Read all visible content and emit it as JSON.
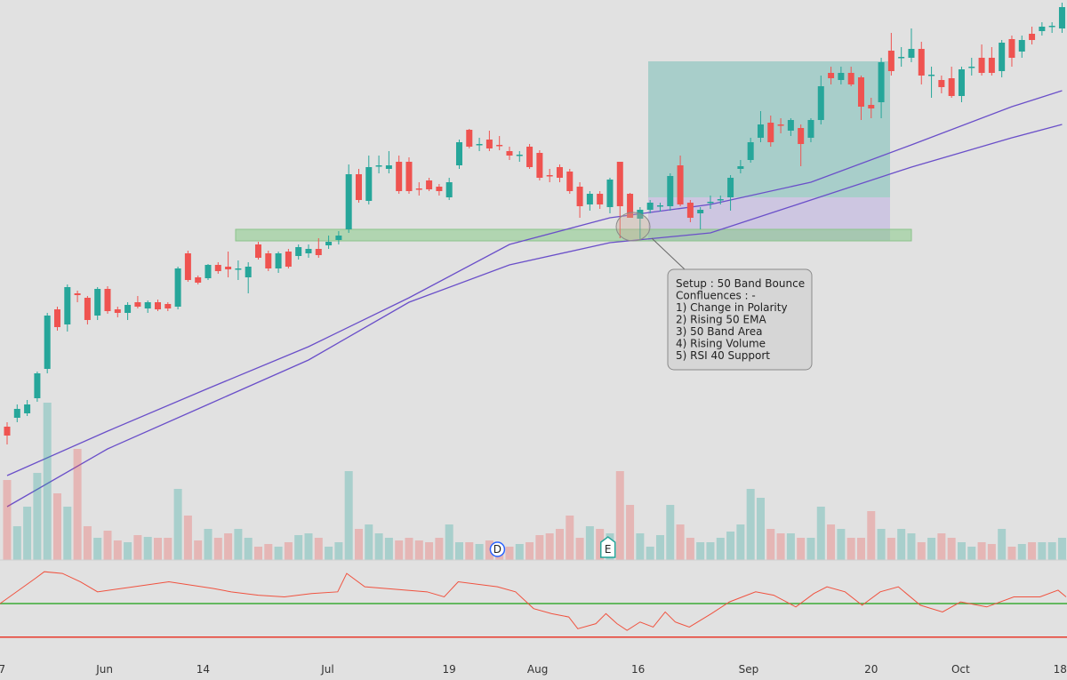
{
  "chart_data": {
    "type": "candlestick",
    "xlim": [
      -0.708,
      105.49
    ],
    "ylim": [
      135,
      765
    ],
    "xticks": [
      {
        "value": -0.5,
        "label": "7"
      },
      {
        "value": 9.7,
        "label": "Jun"
      },
      {
        "value": 19.5,
        "label": "14"
      },
      {
        "value": 31.9,
        "label": "Jul"
      },
      {
        "value": 44,
        "label": "19"
      },
      {
        "value": 52.8,
        "label": "Aug"
      },
      {
        "value": 62.8,
        "label": "16"
      },
      {
        "value": 73.8,
        "label": "Sep"
      },
      {
        "value": 86,
        "label": "20"
      },
      {
        "value": 94.9,
        "label": "Oct"
      },
      {
        "value": 104.8,
        "label": "18"
      }
    ],
    "up_color": "#26a69a",
    "down_color": "#ef5350",
    "candles": [
      [
        285,
        290,
        265,
        275
      ],
      [
        295,
        310,
        290,
        305
      ],
      [
        300,
        315,
        297,
        310
      ],
      [
        317,
        347,
        313,
        345
      ],
      [
        350,
        413,
        345,
        410
      ],
      [
        417,
        420,
        393,
        397
      ],
      [
        400,
        445,
        392,
        442
      ],
      [
        435,
        438,
        425,
        433
      ],
      [
        430,
        432,
        400,
        405
      ],
      [
        410,
        442,
        405,
        440
      ],
      [
        440,
        443,
        412,
        415
      ],
      [
        417,
        420,
        408,
        413
      ],
      [
        413,
        425,
        405,
        422
      ],
      [
        425,
        432,
        418,
        420
      ],
      [
        418,
        427,
        413,
        425
      ],
      [
        425,
        428,
        415,
        417
      ],
      [
        423,
        425,
        415,
        418
      ],
      [
        420,
        465,
        417,
        463
      ],
      [
        480,
        483,
        448,
        450
      ],
      [
        453,
        455,
        445,
        447
      ],
      [
        452,
        468,
        450,
        467
      ],
      [
        467,
        470,
        457,
        460
      ],
      [
        465,
        482,
        453,
        462
      ],
      [
        462,
        472,
        450,
        463
      ],
      [
        453,
        470,
        435,
        465
      ],
      [
        490,
        493,
        473,
        475
      ],
      [
        480,
        483,
        460,
        463
      ],
      [
        463,
        482,
        458,
        480
      ],
      [
        482,
        485,
        463,
        465
      ],
      [
        477,
        490,
        473,
        487
      ],
      [
        480,
        490,
        475,
        485
      ],
      [
        485,
        497,
        475,
        478
      ],
      [
        489,
        500,
        485,
        493
      ],
      [
        495,
        505,
        490,
        500
      ],
      [
        507,
        580,
        503,
        569
      ],
      [
        569,
        575,
        537,
        540
      ],
      [
        539,
        590,
        535,
        577
      ],
      [
        578,
        590,
        570,
        579
      ],
      [
        575,
        595,
        570,
        579
      ],
      [
        583,
        590,
        547,
        550
      ],
      [
        583,
        588,
        547,
        550
      ],
      [
        553,
        560,
        545,
        552
      ],
      [
        562,
        565,
        550,
        552
      ],
      [
        555,
        558,
        545,
        550
      ],
      [
        543,
        565,
        540,
        560
      ],
      [
        579,
        608,
        575,
        605
      ],
      [
        619,
        620,
        598,
        600
      ],
      [
        602,
        610,
        595,
        603
      ],
      [
        608,
        618,
        595,
        598
      ],
      [
        602,
        612,
        596,
        601
      ],
      [
        595,
        600,
        585,
        590
      ],
      [
        590,
        595,
        583,
        591
      ],
      [
        600,
        603,
        575,
        577
      ],
      [
        593,
        596,
        562,
        565
      ],
      [
        568,
        575,
        560,
        567
      ],
      [
        577,
        580,
        560,
        565
      ],
      [
        572,
        575,
        547,
        550
      ],
      [
        555,
        560,
        520,
        533
      ],
      [
        535,
        550,
        528,
        547
      ],
      [
        547,
        550,
        530,
        535
      ],
      [
        532,
        565,
        525,
        563
      ],
      [
        583,
        583,
        497,
        533
      ],
      [
        547,
        548,
        520,
        520
      ],
      [
        519,
        532,
        495,
        529
      ],
      [
        529,
        540,
        525,
        537
      ],
      [
        533,
        537,
        527,
        534
      ],
      [
        533,
        570,
        528,
        567
      ],
      [
        579,
        590,
        533,
        535
      ],
      [
        537,
        540,
        515,
        520
      ],
      [
        525,
        532,
        507,
        529
      ],
      [
        537,
        545,
        530,
        538
      ],
      [
        540,
        545,
        535,
        541
      ],
      [
        543,
        568,
        528,
        565
      ],
      [
        575,
        585,
        570,
        578
      ],
      [
        585,
        610,
        582,
        605
      ],
      [
        610,
        640,
        605,
        625
      ],
      [
        627,
        635,
        600,
        605
      ],
      [
        625,
        632,
        615,
        624
      ],
      [
        618,
        632,
        612,
        630
      ],
      [
        621,
        625,
        578,
        603
      ],
      [
        610,
        632,
        605,
        630
      ],
      [
        630,
        680,
        625,
        668
      ],
      [
        683,
        690,
        670,
        677
      ],
      [
        675,
        690,
        670,
        683
      ],
      [
        683,
        690,
        668,
        670
      ],
      [
        678,
        680,
        630,
        645
      ],
      [
        647,
        655,
        632,
        643
      ],
      [
        650,
        700,
        632,
        695
      ],
      [
        708,
        728,
        680,
        685
      ],
      [
        700,
        712,
        690,
        701
      ],
      [
        700,
        733,
        695,
        710
      ],
      [
        710,
        718,
        670,
        680
      ],
      [
        680,
        690,
        655,
        681
      ],
      [
        675,
        680,
        660,
        667
      ],
      [
        677,
        690,
        655,
        657
      ],
      [
        657,
        690,
        650,
        687
      ],
      [
        689,
        700,
        680,
        690
      ],
      [
        700,
        715,
        680,
        683
      ],
      [
        700,
        712,
        680,
        683
      ],
      [
        685,
        720,
        678,
        717
      ],
      [
        721,
        725,
        690,
        700
      ],
      [
        707,
        725,
        700,
        720
      ],
      [
        727,
        735,
        715,
        720
      ],
      [
        730,
        740,
        725,
        735
      ],
      [
        735,
        740,
        728,
        736
      ],
      [
        733,
        762,
        728,
        757
      ]
    ],
    "volume_lim": [
      0,
      630
    ],
    "volume": [
      90,
      38,
      60,
      98,
      177,
      75,
      60,
      125,
      38,
      25,
      33,
      22,
      20,
      28,
      26,
      25,
      25,
      80,
      50,
      22,
      35,
      25,
      30,
      35,
      25,
      15,
      18,
      15,
      20,
      28,
      30,
      25,
      15,
      20,
      100,
      35,
      40,
      30,
      25,
      22,
      25,
      22,
      20,
      25,
      40,
      20,
      20,
      18,
      22,
      15,
      15,
      18,
      20,
      28,
      30,
      35,
      50,
      25,
      38,
      35,
      30,
      100,
      62,
      30,
      15,
      28,
      62,
      40,
      25,
      20,
      20,
      25,
      32,
      40,
      80,
      70,
      35,
      30,
      30,
      25,
      25,
      60,
      40,
      35,
      25,
      25,
      55,
      35,
      25,
      35,
      30,
      20,
      25,
      30,
      25,
      20,
      15,
      20,
      18,
      35,
      15,
      18,
      20,
      20,
      20,
      25
    ],
    "series": [
      {
        "x": [
          0,
          10,
          20,
          30,
          40,
          50,
          60,
          70,
          80,
          90,
          100,
          105
        ],
        "values": [
          230,
          280,
          328,
          375,
          430,
          490,
          520,
          535,
          560,
          602,
          645,
          663
        ],
        "color": "#6a4fc9"
      },
      {
        "x": [
          0,
          10,
          20,
          30,
          40,
          50,
          60,
          70,
          80,
          90,
          100,
          105
        ],
        "values": [
          195,
          260,
          310,
          360,
          425,
          467,
          492,
          503,
          540,
          577,
          610,
          625
        ],
        "color": "#6a4fc9"
      }
    ],
    "rsi": {
      "ylim": [
        5,
        66
      ],
      "color": "#f0523f",
      "levels": [
        40,
        20
      ],
      "level_colors": [
        "#3aaa35",
        "#e8392c"
      ],
      "x": [
        -0.7,
        2.8,
        3.7,
        5.5,
        7.3,
        9.0,
        12.6,
        16.1,
        20.5,
        22.3,
        25,
        27.6,
        30.3,
        32.9,
        33.8,
        35.6,
        41.8,
        43.5,
        44.9,
        48.8,
        50.6,
        52.4,
        54.2,
        55.9,
        56.8,
        58.6,
        59.6,
        60.7,
        61.7,
        63,
        64.3,
        65.5,
        66.5,
        67.9,
        70.1,
        71.9,
        74.5,
        76.3,
        78.5,
        80.3,
        81.6,
        83.4,
        85.1,
        86.9,
        88.7,
        90.9,
        93.1,
        94.9,
        97.5,
        100.2,
        102.8,
        104.6,
        105.4
      ],
      "values": [
        40,
        55,
        59,
        58,
        53,
        47,
        50,
        53,
        49,
        47,
        45,
        44,
        46,
        47,
        58,
        50,
        47,
        44,
        53,
        50,
        47,
        37,
        34,
        32,
        25,
        28,
        34,
        28,
        24,
        29,
        26,
        35,
        29,
        26,
        34,
        41,
        47,
        45,
        38,
        46,
        50,
        47,
        39,
        47,
        50,
        39,
        35,
        41,
        38,
        44,
        44,
        48,
        44
      ]
    },
    "events": [
      {
        "x": 48.8,
        "label": "D",
        "color": "#2962ff"
      },
      {
        "x": 59.8,
        "label": "E",
        "color": "#26a69a"
      }
    ],
    "note": [
      "Setup : 50 Band Bounce",
      "Confluences : -",
      "1) Change in Polarity",
      "2) Rising 50 EMA",
      "3) 50 Band Area",
      "4) Rising Volume",
      "5) RSI 40 Support"
    ]
  }
}
